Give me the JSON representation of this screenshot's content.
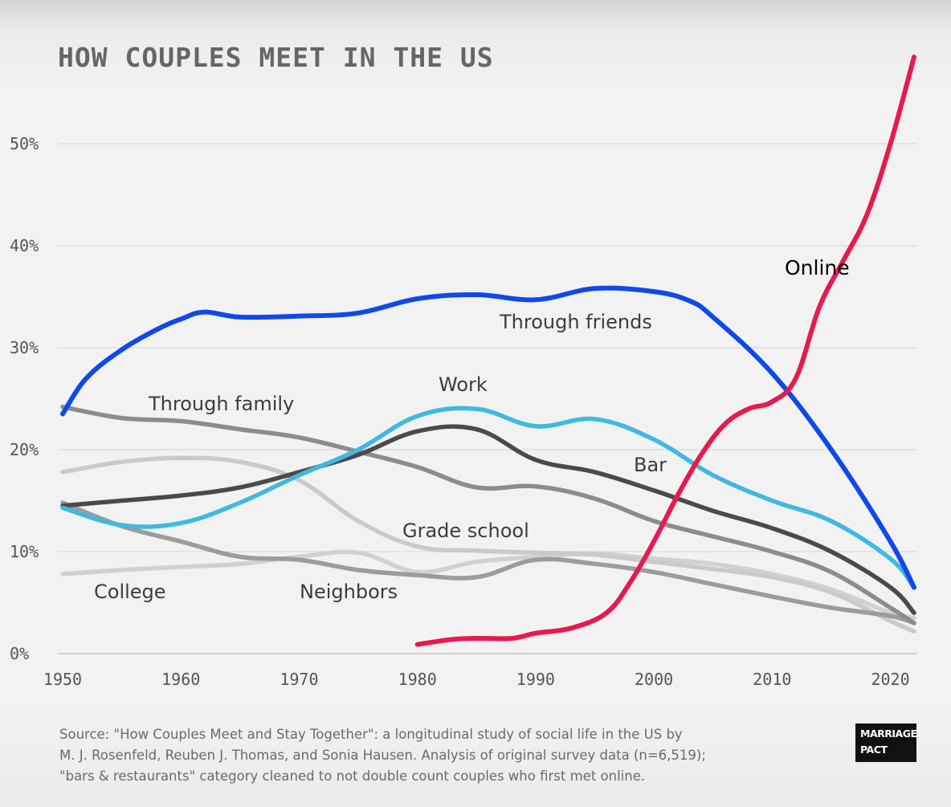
{
  "title": "HOW COUPLES MEET IN THE US",
  "source": {
    "lines": [
      "Source: \"How Couples Meet and Stay Together\": a longitudinal study of social life in the US by",
      "M. J. Rosenfeld, Reuben J. Thomas, and Sonia Hausen. Analysis of original survey data (n=6,519);",
      "\"bars & restaurants\" category cleaned to not double count couples who first met online."
    ]
  },
  "logo": {
    "line1": "MARRIAGE",
    "line2": "PACT"
  },
  "chart_data": {
    "type": "line",
    "title": "HOW COUPLES MEET IN THE US",
    "xlim": [
      1950,
      2022
    ],
    "ylim": [
      0,
      58
    ],
    "x_ticks": [
      1950,
      1960,
      1970,
      1980,
      1990,
      2000,
      2010,
      2020
    ],
    "y_ticks": [
      0,
      10,
      20,
      30,
      40,
      50
    ],
    "y_tick_labels": [
      "0%",
      "10%",
      "20%",
      "30%",
      "40%",
      "50%"
    ],
    "grid": true,
    "colors": {
      "online": "#e8194f",
      "friends": "#1049ea",
      "work": "#41b8e0",
      "bar": "#4a4a4a",
      "family": "#8c8c8c",
      "grade_school": "#cacaca",
      "neighbors": "#9c9c9c",
      "college": "#d1d1d1"
    },
    "series": [
      {
        "key": "college",
        "name": "College",
        "label": "College",
        "x": [
          1950,
          1955,
          1960,
          1965,
          1970,
          1975,
          1980,
          1985,
          1990,
          1995,
          2000,
          2005,
          2010,
          2015,
          2020,
          2022
        ],
        "y": [
          7.8,
          8.2,
          8.5,
          8.8,
          9.5,
          9.9,
          8.0,
          9.0,
          9.5,
          9.8,
          9.3,
          8.8,
          7.8,
          6.3,
          4.0,
          3.5
        ]
      },
      {
        "key": "grade_school",
        "name": "Grade school",
        "label": "Grade school",
        "x": [
          1950,
          1955,
          1960,
          1965,
          1970,
          1975,
          1980,
          1985,
          1990,
          1995,
          2000,
          2005,
          2010,
          2015,
          2020,
          2022
        ],
        "y": [
          17.8,
          18.8,
          19.2,
          18.8,
          17.0,
          13.0,
          10.5,
          10.1,
          9.9,
          9.7,
          9.0,
          8.3,
          7.5,
          6.0,
          3.2,
          2.2
        ]
      },
      {
        "key": "neighbors",
        "name": "Neighbors",
        "label": "Neighbors",
        "x": [
          1950,
          1955,
          1960,
          1965,
          1970,
          1975,
          1980,
          1985,
          1990,
          1995,
          2000,
          2005,
          2010,
          2015,
          2020,
          2022
        ],
        "y": [
          14.8,
          12.5,
          11.0,
          9.5,
          9.2,
          8.2,
          7.7,
          7.5,
          9.2,
          8.8,
          8.0,
          6.8,
          5.6,
          4.5,
          3.7,
          3.0
        ]
      },
      {
        "key": "family",
        "name": "Through family",
        "label": "Through family",
        "x": [
          1950,
          1955,
          1960,
          1965,
          1970,
          1975,
          1980,
          1985,
          1990,
          1995,
          2000,
          2005,
          2010,
          2015,
          2020,
          2022
        ],
        "y": [
          24.2,
          23.1,
          22.8,
          22.0,
          21.2,
          19.8,
          18.3,
          16.3,
          16.4,
          15.2,
          13.0,
          11.5,
          10.0,
          8.0,
          4.5,
          3.0
        ]
      },
      {
        "key": "bar",
        "name": "Bar",
        "label": "Bar",
        "x": [
          1950,
          1955,
          1960,
          1965,
          1970,
          1975,
          1980,
          1985,
          1990,
          1995,
          2000,
          2005,
          2010,
          2015,
          2020,
          2022
        ],
        "y": [
          14.5,
          15.0,
          15.5,
          16.3,
          17.8,
          19.5,
          21.8,
          22.0,
          19.0,
          17.8,
          16.0,
          14.0,
          12.3,
          10.0,
          6.5,
          4.0
        ]
      },
      {
        "key": "work",
        "name": "Work",
        "label": "Work",
        "x": [
          1950,
          1955,
          1960,
          1965,
          1970,
          1975,
          1980,
          1985,
          1990,
          1995,
          2000,
          2005,
          2010,
          2015,
          2020,
          2022
        ],
        "y": [
          14.3,
          12.6,
          12.8,
          14.8,
          17.5,
          20.0,
          23.3,
          24.0,
          22.3,
          23.0,
          21.0,
          17.5,
          15.0,
          13.0,
          9.3,
          6.5
        ]
      },
      {
        "key": "friends",
        "name": "Through friends",
        "label": "Through friends",
        "x": [
          1950,
          1952,
          1955,
          1958,
          1960,
          1962,
          1965,
          1970,
          1975,
          1980,
          1985,
          1990,
          1995,
          2000,
          2003,
          2005,
          2010,
          2015,
          2020,
          2022
        ],
        "y": [
          23.5,
          27.0,
          29.8,
          31.8,
          32.8,
          33.5,
          33.0,
          33.1,
          33.4,
          34.8,
          35.2,
          34.7,
          35.8,
          35.5,
          34.6,
          33.0,
          27.5,
          20.0,
          11.0,
          6.5
        ]
      },
      {
        "key": "online",
        "name": "Online",
        "label": "Online",
        "x": [
          1980,
          1983,
          1985,
          1988,
          1990,
          1993,
          1996,
          1998,
          2000,
          2002,
          2004,
          2006,
          2008,
          2010,
          2012,
          2014,
          2016,
          2018,
          2020,
          2022
        ],
        "y": [
          0.9,
          1.4,
          1.5,
          1.5,
          2.0,
          2.5,
          4.0,
          7.0,
          11.0,
          15.5,
          19.5,
          22.5,
          24.0,
          24.7,
          27.0,
          34.0,
          38.5,
          43.0,
          50.0,
          58.5
        ]
      }
    ]
  }
}
